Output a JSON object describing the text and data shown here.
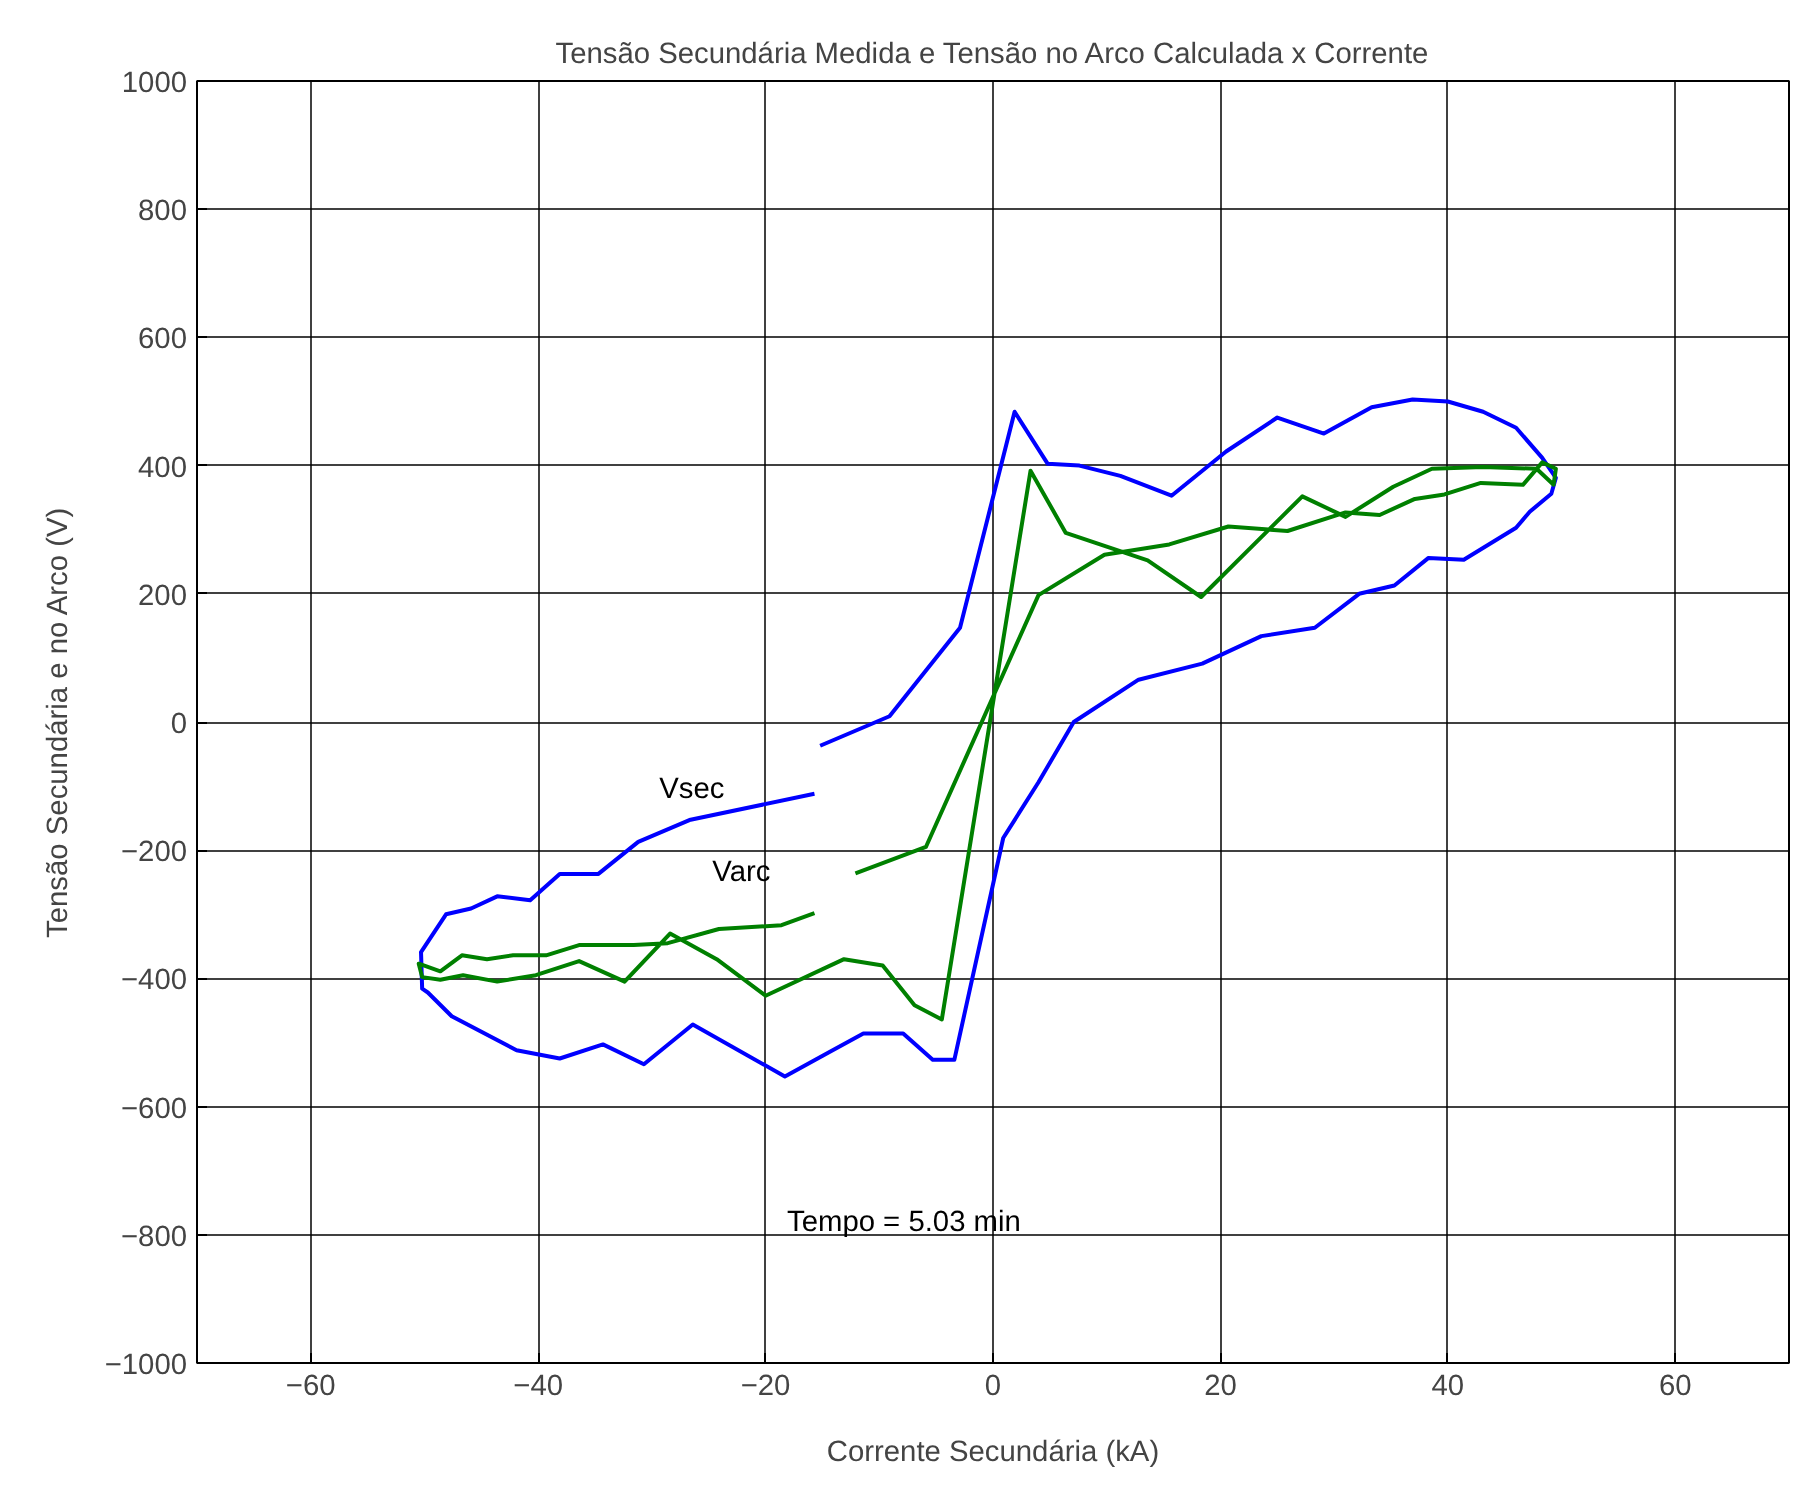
{
  "chart_data": {
    "type": "line",
    "title": "Tensão Secundária Medida e Tensão no Arco Calculada x Corrente",
    "xlabel": "Corrente Secundária (kA)",
    "ylabel": "Tensão Secundária e no Arco (V)",
    "xlim": [
      -70,
      70
    ],
    "ylim": [
      -1000,
      1000
    ],
    "xticks": [
      -60,
      -40,
      -20,
      0,
      20,
      40,
      60
    ],
    "yticks": [
      -1000,
      -800,
      -600,
      -400,
      -200,
      0,
      200,
      400,
      600,
      800,
      1000
    ],
    "grid": true,
    "legend": false,
    "marker": "none",
    "line_style": "solid",
    "annotations": [
      "Tempo   =   5.03 min"
    ],
    "series": [
      {
        "name": "Vsec",
        "color": "#0000ff",
        "x": [
          -15.2,
          -9.1,
          -2.9,
          1.9,
          4.8,
          7.6,
          11.2,
          15.7,
          20.5,
          25.0,
          29.1,
          33.3,
          36.9,
          40.0,
          43.1,
          46.0,
          48.3,
          49.5,
          49.1,
          47.2,
          46.0,
          41.4,
          38.3,
          35.3,
          32.2,
          28.3,
          23.6,
          18.4,
          12.8,
          7.1,
          4.0,
          0.9,
          -3.4,
          -5.3,
          -7.9,
          -11.4,
          -14.3,
          -18.3,
          -26.4,
          -30.7,
          -34.3,
          -38.1,
          -41.9,
          -47.6,
          -49.7,
          -50.2,
          -50.3,
          -48.1,
          -45.9,
          -43.6,
          -40.7,
          -38.1,
          -34.7,
          -31.2,
          -26.7,
          -15.7
        ],
        "values": [
          -37,
          9,
          147,
          484,
          403,
          400,
          384,
          353,
          422,
          475,
          450,
          491,
          503,
          500,
          484,
          459,
          412,
          381,
          356,
          328,
          303,
          253,
          256,
          213,
          200,
          147,
          134,
          91,
          66,
          0,
          -94,
          -181,
          -527,
          -527,
          -486,
          -486,
          -514,
          -553,
          -472,
          -534,
          -503,
          -525,
          -512,
          -459,
          -422,
          -416,
          -359,
          -300,
          -291,
          -272,
          -278,
          -237,
          -237,
          -187,
          -153,
          -112
        ]
      },
      {
        "name": "Varc",
        "color": "#008000",
        "x": [
          -12.1,
          -5.9,
          4.0,
          9.8,
          15.5,
          20.7,
          25.9,
          31.0,
          34.0,
          37.1,
          39.7,
          42.9,
          46.6,
          48.3,
          49.5,
          49.3,
          47.8,
          43.1,
          38.6,
          35.2,
          31.0,
          27.2,
          18.3,
          13.6,
          6.4,
          3.3,
          -4.5,
          -6.9,
          -9.7,
          -13.1,
          -20.0,
          -24.3,
          -28.4,
          -32.4,
          -36.4,
          -40.2,
          -43.6,
          -46.6,
          -48.6,
          -50.2,
          -50.5,
          -48.6,
          -46.7,
          -44.5,
          -42.2,
          -39.3,
          -36.4,
          -31.6,
          -28.6,
          -24.1,
          -18.6,
          -15.7
        ],
        "values": [
          -236,
          -195,
          198,
          261,
          277,
          305,
          298,
          327,
          323,
          348,
          355,
          373,
          370,
          405,
          395,
          370,
          395,
          398,
          395,
          367,
          320,
          352,
          195,
          252,
          295,
          392,
          -464,
          -442,
          -380,
          -370,
          -427,
          -370,
          -330,
          -405,
          -373,
          -395,
          -405,
          -395,
          -402,
          -398,
          -377,
          -389,
          -364,
          -370,
          -364,
          -364,
          -348,
          -348,
          -345,
          -323,
          -317,
          -298
        ]
      }
    ]
  }
}
